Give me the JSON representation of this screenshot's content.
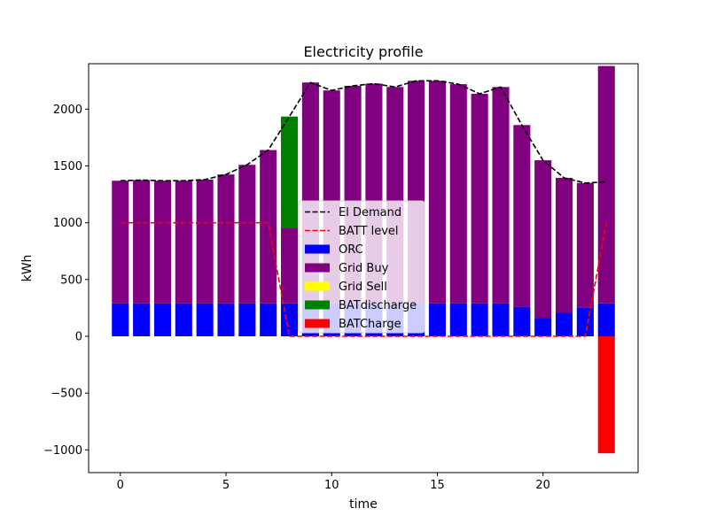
{
  "chart_data": {
    "type": "bar",
    "title": "Electricity profile",
    "xlabel": "time",
    "ylabel": "kWh",
    "xlim": [
      -1.5,
      24.5
    ],
    "ylim": [
      -1200,
      2400
    ],
    "xticks": [
      0,
      5,
      10,
      15,
      20
    ],
    "yticks": [
      -1000,
      -500,
      0,
      500,
      1000,
      1500,
      2000
    ],
    "grid": false,
    "legend_position": "center",
    "x": [
      0,
      1,
      2,
      3,
      4,
      5,
      6,
      7,
      8,
      9,
      10,
      11,
      12,
      13,
      14,
      15,
      16,
      17,
      18,
      19,
      20,
      21,
      22,
      23
    ],
    "series": [
      {
        "name": "ORC",
        "kind": "bar",
        "color": "#0000ff",
        "values": [
          290,
          290,
          290,
          290,
          290,
          290,
          290,
          290,
          290,
          290,
          290,
          290,
          290,
          290,
          290,
          290,
          290,
          290,
          290,
          260,
          160,
          210,
          250,
          290
        ]
      },
      {
        "name": "Grid Buy",
        "kind": "bar",
        "color": "#800080",
        "values": [
          1080,
          1085,
          1080,
          1080,
          1090,
          1135,
          1220,
          1350,
          665,
          1945,
          1875,
          1915,
          1935,
          1905,
          1960,
          1960,
          1930,
          1845,
          1905,
          1600,
          1390,
          1185,
          1100,
          2090
        ]
      },
      {
        "name": "Grid Sell",
        "kind": "bar",
        "color": "#ffff00",
        "values": [
          0,
          0,
          0,
          0,
          0,
          0,
          0,
          0,
          0,
          0,
          0,
          0,
          0,
          0,
          0,
          0,
          0,
          0,
          0,
          0,
          0,
          0,
          0,
          0
        ]
      },
      {
        "name": "BATdischarge",
        "kind": "bar",
        "color": "#008000",
        "values": [
          0,
          0,
          0,
          0,
          0,
          0,
          0,
          0,
          980,
          0,
          0,
          0,
          0,
          0,
          0,
          0,
          0,
          0,
          0,
          0,
          0,
          0,
          0,
          0
        ]
      },
      {
        "name": "BATCharge",
        "kind": "bar",
        "color": "#ff0000",
        "values": [
          0,
          0,
          0,
          0,
          0,
          0,
          0,
          0,
          0,
          0,
          0,
          0,
          0,
          0,
          0,
          0,
          0,
          0,
          0,
          0,
          0,
          0,
          0,
          -1030
        ]
      },
      {
        "name": "El Demand",
        "kind": "line",
        "color": "#000000",
        "values": [
          1370,
          1375,
          1370,
          1370,
          1380,
          1425,
          1510,
          1640,
          1935,
          2235,
          2165,
          2205,
          2225,
          2195,
          2250,
          2250,
          2220,
          2135,
          2195,
          1860,
          1550,
          1395,
          1350,
          1360
        ]
      },
      {
        "name": "BATT level",
        "kind": "line",
        "color": "#ff0000",
        "values": [
          1000,
          1000,
          1000,
          1000,
          1000,
          1000,
          1000,
          1000,
          0,
          0,
          0,
          0,
          0,
          0,
          0,
          0,
          0,
          0,
          0,
          0,
          0,
          0,
          0,
          1000
        ]
      }
    ],
    "legend": [
      "El Demand",
      "BATT level",
      "ORC",
      "Grid Buy",
      "Grid Sell",
      "BATdischarge",
      "BATCharge"
    ]
  }
}
